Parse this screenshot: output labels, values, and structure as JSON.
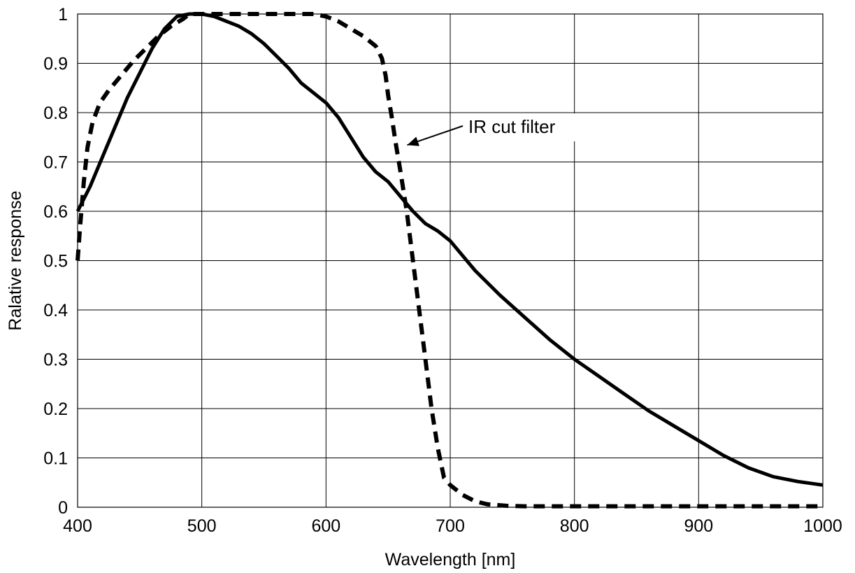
{
  "chart_data": {
    "type": "line",
    "title": "",
    "xlabel": "Wavelength [nm]",
    "ylabel": "Ralative response",
    "xlim": [
      400,
      1000
    ],
    "ylim": [
      0,
      1
    ],
    "x_ticks": [
      "400",
      "500",
      "600",
      "700",
      "800",
      "900",
      "1000"
    ],
    "y_ticks": [
      "0",
      "0.1",
      "0.2",
      "0.3",
      "0.4",
      "0.5",
      "0.6",
      "0.7",
      "0.8",
      "0.9",
      "1"
    ],
    "grid": true,
    "legend": "none",
    "colors": {
      "line": "#000000",
      "grid": "#000000",
      "background": "#ffffff"
    },
    "series": [
      {
        "style": "solid",
        "x": [
          400,
          410,
          420,
          430,
          440,
          450,
          460,
          470,
          480,
          490,
          500,
          510,
          520,
          530,
          540,
          550,
          560,
          570,
          580,
          590,
          600,
          610,
          620,
          630,
          640,
          650,
          660,
          670,
          680,
          690,
          700,
          720,
          740,
          760,
          780,
          800,
          820,
          840,
          860,
          880,
          900,
          920,
          940,
          960,
          980,
          1000
        ],
        "y": [
          0.6,
          0.65,
          0.71,
          0.77,
          0.83,
          0.88,
          0.93,
          0.97,
          0.995,
          1.0,
          1.0,
          0.995,
          0.985,
          0.975,
          0.96,
          0.94,
          0.915,
          0.89,
          0.86,
          0.84,
          0.82,
          0.79,
          0.75,
          0.71,
          0.68,
          0.66,
          0.63,
          0.6,
          0.575,
          0.56,
          0.54,
          0.48,
          0.43,
          0.385,
          0.34,
          0.3,
          0.265,
          0.23,
          0.195,
          0.165,
          0.135,
          0.105,
          0.08,
          0.062,
          0.052,
          0.045
        ]
      },
      {
        "style": "dashed",
        "x": [
          400,
          402,
          405,
          408,
          412,
          418,
          425,
          435,
          445,
          455,
          465,
          475,
          485,
          490,
          500,
          520,
          560,
          590,
          600,
          610,
          620,
          630,
          640,
          645,
          648,
          650,
          653,
          656,
          660,
          665,
          670,
          675,
          680,
          685,
          690,
          695,
          700,
          710,
          720,
          730,
          745,
          760,
          800,
          850,
          900,
          950,
          1000
        ],
        "y": [
          0.5,
          0.57,
          0.66,
          0.73,
          0.78,
          0.82,
          0.845,
          0.875,
          0.905,
          0.93,
          0.955,
          0.975,
          0.99,
          1.0,
          1.0,
          1.0,
          1.0,
          1.0,
          0.995,
          0.985,
          0.97,
          0.955,
          0.935,
          0.91,
          0.875,
          0.835,
          0.79,
          0.74,
          0.68,
          0.6,
          0.5,
          0.4,
          0.3,
          0.2,
          0.12,
          0.06,
          0.045,
          0.025,
          0.012,
          0.006,
          0.003,
          0.002,
          0.002,
          0.002,
          0.002,
          0.002,
          0.002
        ]
      }
    ],
    "annotation": {
      "text": "IR cut filter",
      "arrow_target": {
        "x": 662,
        "y": 0.73
      }
    }
  }
}
